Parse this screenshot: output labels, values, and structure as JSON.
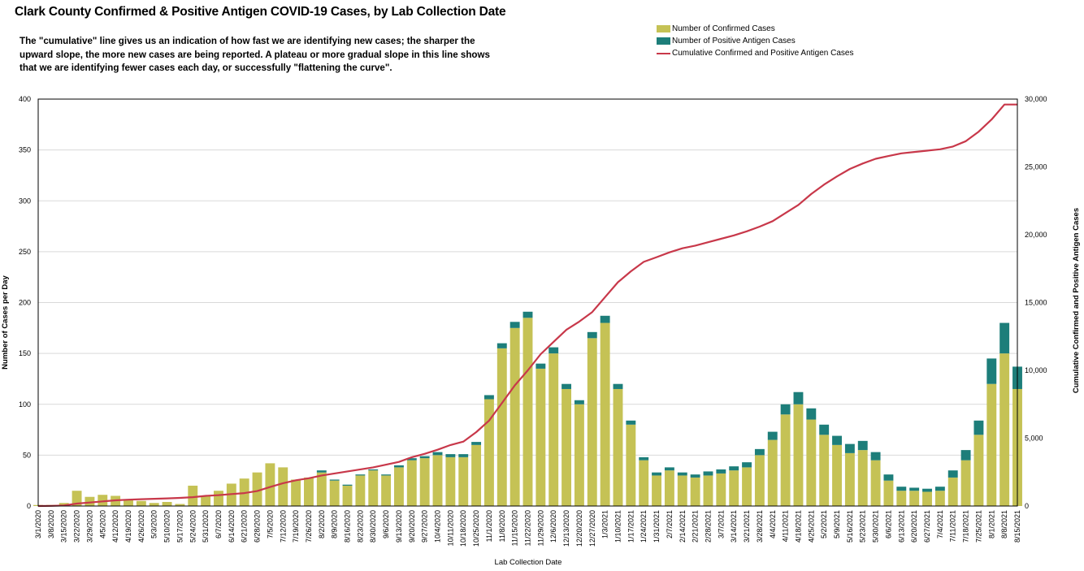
{
  "chart_data": {
    "type": "bar",
    "title": "Clark County Confirmed & Positive Antigen COVID-19 Cases, by Lab Collection Date",
    "subtitle": "The \"cumulative\" line gives  us an indication of how fast we are identifying new cases; the sharper the upward slope, the more new cases are being reported. A plateau or more gradual slope in this line shows that we are identifying fewer cases each day, or successfully \"flattening the curve\".",
    "xlabel": "Lab Collection Date",
    "ylabel": "Number of Cases per Day",
    "y2label": "Cumulative  Confirmed and Positive Antigen Cases",
    "ylim": [
      0,
      400
    ],
    "y2lim": [
      0,
      30000
    ],
    "yticks": [
      0,
      50,
      100,
      150,
      200,
      250,
      300,
      350,
      400
    ],
    "y2ticks": [
      "0",
      "5,000",
      "10,000",
      "15,000",
      "20,000",
      "25,000",
      "30,000"
    ],
    "grid": true,
    "legend_position": "top-right",
    "colors": {
      "confirmed": "#c5c255",
      "antigen": "#1d7e7a",
      "cumulative": "#c8384a",
      "grid": "#d9d9d9"
    },
    "categories": [
      "3/1/2020",
      "3/8/2020",
      "3/15/2020",
      "3/22/2020",
      "3/29/2020",
      "4/5/2020",
      "4/12/2020",
      "4/19/2020",
      "4/26/2020",
      "5/3/2020",
      "5/10/2020",
      "5/17/2020",
      "5/24/2020",
      "5/31/2020",
      "6/7/2020",
      "6/14/2020",
      "6/21/2020",
      "6/28/2020",
      "7/5/2020",
      "7/12/2020",
      "7/19/2020",
      "7/26/2020",
      "8/2/2020",
      "8/9/2020",
      "8/16/2020",
      "8/23/2020",
      "8/30/2020",
      "9/6/2020",
      "9/13/2020",
      "9/20/2020",
      "9/27/2020",
      "10/4/2020",
      "10/11/2020",
      "10/18/2020",
      "10/25/2020",
      "11/1/2020",
      "11/8/2020",
      "11/15/2020",
      "11/22/2020",
      "11/29/2020",
      "12/6/2020",
      "12/13/2020",
      "12/20/2020",
      "12/27/2020",
      "1/3/2021",
      "1/10/2021",
      "1/17/2021",
      "1/24/2021",
      "1/31/2021",
      "2/7/2021",
      "2/14/2021",
      "2/21/2021",
      "2/28/2021",
      "3/7/2021",
      "3/14/2021",
      "3/21/2021",
      "3/28/2021",
      "4/4/2021",
      "4/11/2021",
      "4/18/2021",
      "4/25/2021",
      "5/2/2021",
      "5/9/2021",
      "5/16/2021",
      "5/23/2021",
      "5/30/2021",
      "6/6/2021",
      "6/13/2021",
      "6/20/2021",
      "6/27/2021",
      "7/4/2021",
      "7/11/2021",
      "7/18/2021",
      "7/25/2021",
      "8/1/2021",
      "8/8/2021",
      "8/15/2021"
    ],
    "series": [
      {
        "name": "Number of Confirmed Cases",
        "values": [
          1,
          1,
          3,
          15,
          9,
          11,
          10,
          6,
          5,
          3,
          4,
          2,
          20,
          10,
          15,
          22,
          27,
          33,
          42,
          38,
          26,
          28,
          33,
          25,
          20,
          30,
          35,
          30,
          38,
          45,
          47,
          50,
          48,
          48,
          60,
          105,
          155,
          175,
          185,
          135,
          150,
          115,
          100,
          165,
          180,
          115,
          80,
          45,
          30,
          35,
          30,
          28,
          30,
          32,
          35,
          38,
          50,
          65,
          90,
          100,
          85,
          70,
          60,
          52,
          55,
          45,
          25,
          15,
          15,
          14,
          15,
          28,
          45,
          70,
          120,
          150,
          115
        ]
      },
      {
        "name": "Number of Positive Antigen Cases",
        "values": [
          0,
          0,
          0,
          0,
          0,
          0,
          0,
          0,
          0,
          0,
          0,
          0,
          0,
          0,
          0,
          0,
          0,
          0,
          0,
          0,
          0,
          0,
          2,
          1,
          1,
          1,
          1,
          1,
          2,
          2,
          2,
          3,
          3,
          3,
          3,
          4,
          5,
          6,
          6,
          5,
          6,
          5,
          4,
          6,
          7,
          5,
          4,
          3,
          3,
          3,
          3,
          3,
          4,
          4,
          4,
          5,
          6,
          8,
          10,
          12,
          11,
          10,
          9,
          9,
          9,
          8,
          6,
          4,
          3,
          3,
          4,
          7,
          10,
          14,
          25,
          30,
          22
        ]
      },
      {
        "name": "Cumulative Confirmed and Positive Antigen Cases",
        "axis": "right",
        "values": [
          0,
          10,
          40,
          180,
          260,
          340,
          420,
          470,
          500,
          530,
          560,
          600,
          650,
          750,
          800,
          880,
          950,
          1100,
          1400,
          1680,
          1900,
          2050,
          2250,
          2400,
          2550,
          2700,
          2850,
          3050,
          3250,
          3600,
          3850,
          4150,
          4500,
          4750,
          5450,
          6300,
          7600,
          8900,
          10000,
          11200,
          12100,
          13000,
          13600,
          14300,
          15400,
          16500,
          17300,
          18000,
          18350,
          18700,
          19000,
          19200,
          19450,
          19700,
          19950,
          20250,
          20600,
          21000,
          21600,
          22200,
          23000,
          23700,
          24300,
          24850,
          25250,
          25600,
          25800,
          26000,
          26100,
          26200,
          26300,
          26500,
          26900,
          27600,
          28500,
          29600,
          29600
        ]
      }
    ]
  },
  "legend": {
    "confirmed": "Number of Confirmed Cases",
    "antigen": "Number of Positive Antigen Cases",
    "cumulative": "Cumulative Confirmed and Positive Antigen Cases"
  }
}
